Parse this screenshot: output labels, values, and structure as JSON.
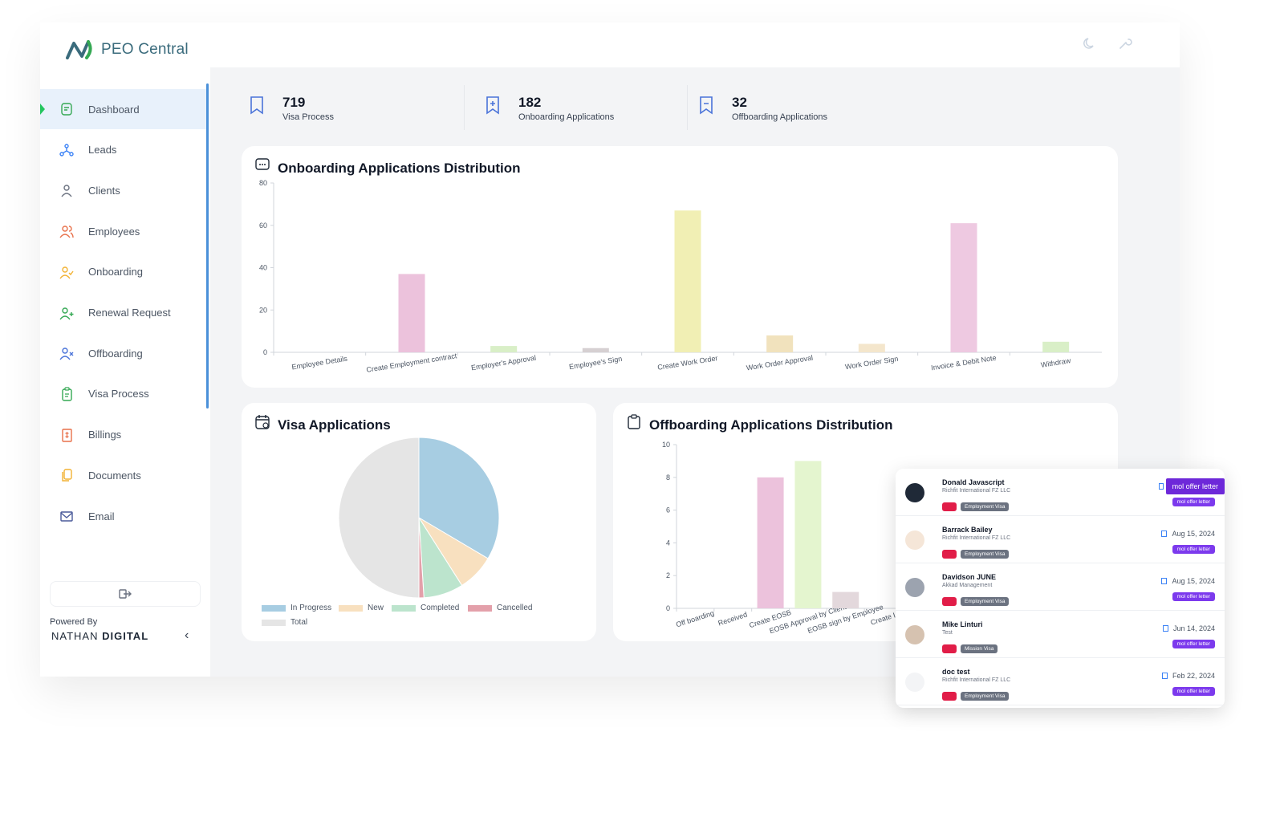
{
  "app": {
    "name": "PEO Central"
  },
  "topbar": {
    "icons": [
      "moon-icon",
      "wrench-icon"
    ]
  },
  "sidebar": {
    "items": [
      {
        "label": "Dashboard",
        "icon": "dashboard-icon",
        "color": "#34a853",
        "active": true
      },
      {
        "label": "Leads",
        "icon": "leads-icon",
        "color": "#3b82f6"
      },
      {
        "label": "Clients",
        "icon": "user-icon",
        "color": "#6b7280"
      },
      {
        "label": "Employees",
        "icon": "users-icon",
        "color": "#e8714a"
      },
      {
        "label": "Onboarding",
        "icon": "user-check-icon",
        "color": "#f2b233"
      },
      {
        "label": "Renewal Request",
        "icon": "user-plus-icon",
        "color": "#34a853"
      },
      {
        "label": "Offboarding",
        "icon": "user-x-icon",
        "color": "#4a73d9"
      },
      {
        "label": "Visa Process",
        "icon": "clipboard-icon",
        "color": "#34a853"
      },
      {
        "label": "Billings",
        "icon": "invoice-icon",
        "color": "#e8714a"
      },
      {
        "label": "Documents",
        "icon": "documents-icon",
        "color": "#f2b233"
      },
      {
        "label": "Email",
        "icon": "mail-icon",
        "color": "#4a5a9a"
      }
    ],
    "powered_by": "Powered By",
    "brand_light": "NATHAN",
    "brand_bold": "DIGITAL"
  },
  "stats": [
    {
      "value": "719",
      "label": "Visa Process"
    },
    {
      "value": "182",
      "label": "Onboarding Applications"
    },
    {
      "value": "32",
      "label": "Offboarding Applications"
    }
  ],
  "onboarding_card": {
    "title": "Onboarding Applications Distribution"
  },
  "visa_card": {
    "title": "Visa Applications"
  },
  "offboarding_card": {
    "title": "Offboarding Applications Distribution"
  },
  "chart_data": [
    {
      "type": "bar",
      "title": "Onboarding Applications Distribution",
      "categories": [
        "Employee Details",
        "Create Employment contract",
        "Employer's Approval",
        "Employee's Sign",
        "Create Work Order",
        "Work Order Approval",
        "Work Order Sign",
        "Invoice & Debit Note",
        "Withdraw"
      ],
      "values": [
        0,
        37,
        3,
        2,
        67,
        8,
        4,
        61,
        5
      ],
      "colors": [
        "#ecc2dc",
        "#ecc2dc",
        "#d9efc7",
        "#d6d0d2",
        "#f1efb4",
        "#f1e2bd",
        "#f4e6cc",
        "#eec9e1",
        "#d9efc7"
      ],
      "ylim": [
        0,
        80
      ],
      "yticks": [
        0,
        20,
        40,
        60,
        80
      ]
    },
    {
      "type": "pie",
      "title": "Visa Applications",
      "labels": [
        "In Progress",
        "New",
        "Completed",
        "Cancelled",
        "Total"
      ],
      "values": [
        33.5,
        7.5,
        8,
        1,
        50
      ],
      "colors": [
        "#a7cde2",
        "#f8e0bf",
        "#bce4cd",
        "#e3a0aa",
        "#e5e5e5"
      ]
    },
    {
      "type": "bar",
      "title": "Offboarding Applications Distribution",
      "categories": [
        "Off boarding",
        "Received",
        "Create EOSB",
        "EOSB Approval by Client",
        "EOSB sign by Employee",
        "Create I"
      ],
      "values": [
        0,
        0,
        8,
        9,
        1,
        0
      ],
      "colors": [
        "#ecc2dc",
        "#ecc2dc",
        "#ecc2dc",
        "#e4f5cf",
        "#e3d8dc",
        "#d9efc7"
      ],
      "ylim": [
        0,
        10
      ],
      "yticks": [
        0,
        2,
        4,
        6,
        8,
        10
      ]
    }
  ],
  "popup": {
    "rows": [
      {
        "name": "Donald Javascript",
        "company": "Richfit International FZ LLC",
        "visa": "Employment Visa",
        "date": "",
        "tag": "mol offer letter",
        "tooltip": "mol offer letter",
        "avatar": "dark"
      },
      {
        "name": "Barrack Bailey",
        "company": "Richfit International FZ LLC",
        "visa": "Employment Visa",
        "date": "Aug 15, 2024",
        "tag": "mol offer letter",
        "avatar": "photo"
      },
      {
        "name": "Davidson JUNE",
        "company": "Akkad Management",
        "visa": "Employment Visa",
        "date": "Aug 15, 2024",
        "tag": "mol offer letter",
        "avatar": "grey"
      },
      {
        "name": "Mike Linturi",
        "company": "Test",
        "visa": "Mission Visa",
        "date": "Jun 14, 2024",
        "tag": "mol offer letter",
        "avatar": "photo2"
      },
      {
        "name": "doc test",
        "company": "Richfit International FZ LLC",
        "visa": "Employment Visa",
        "date": "Feb 22, 2024",
        "tag": "mol offer letter",
        "avatar": "light"
      }
    ]
  }
}
